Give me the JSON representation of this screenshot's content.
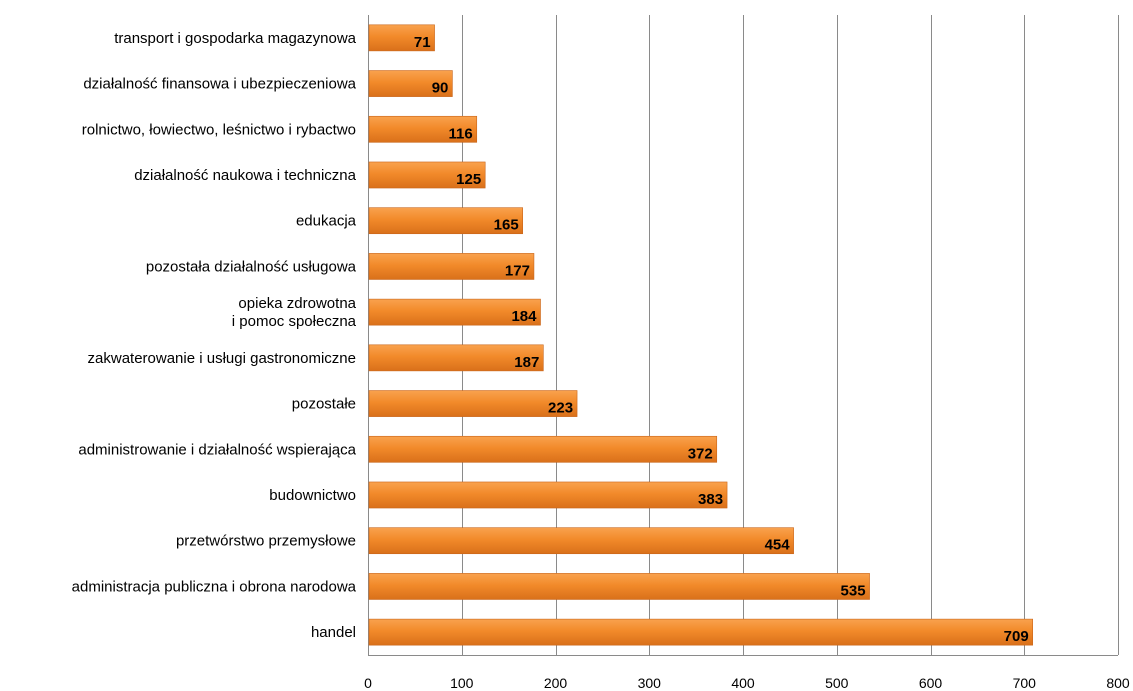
{
  "chart_data": {
    "type": "bar",
    "orientation": "horizontal",
    "title": "",
    "xlabel": "",
    "ylabel": "",
    "categories": [
      "transport i gospodarka magazynowa",
      "działalność finansowa i ubezpieczeniowa",
      "rolnictwo, łowiectwo, leśnictwo i rybactwo",
      "działalność naukowa i techniczna",
      "edukacja",
      "pozostała działalność usługowa",
      "opieka zdrowotna\ni pomoc społeczna",
      "zakwaterowanie i usługi gastronomiczne",
      "pozostałe",
      "administrowanie i działalność wspierająca",
      "budownictwo",
      "przetwórstwo przemysłowe",
      "administracja publiczna i obrona narodowa",
      "handel"
    ],
    "values": [
      71,
      90,
      116,
      125,
      165,
      177,
      184,
      187,
      223,
      372,
      383,
      454,
      535,
      709
    ],
    "xlim": [
      0,
      800
    ],
    "xticks": [
      0,
      100,
      200,
      300,
      400,
      500,
      600,
      700,
      800
    ],
    "grid": true,
    "legend": "none",
    "bar_color": "#f28a2a",
    "data_labels": true
  }
}
